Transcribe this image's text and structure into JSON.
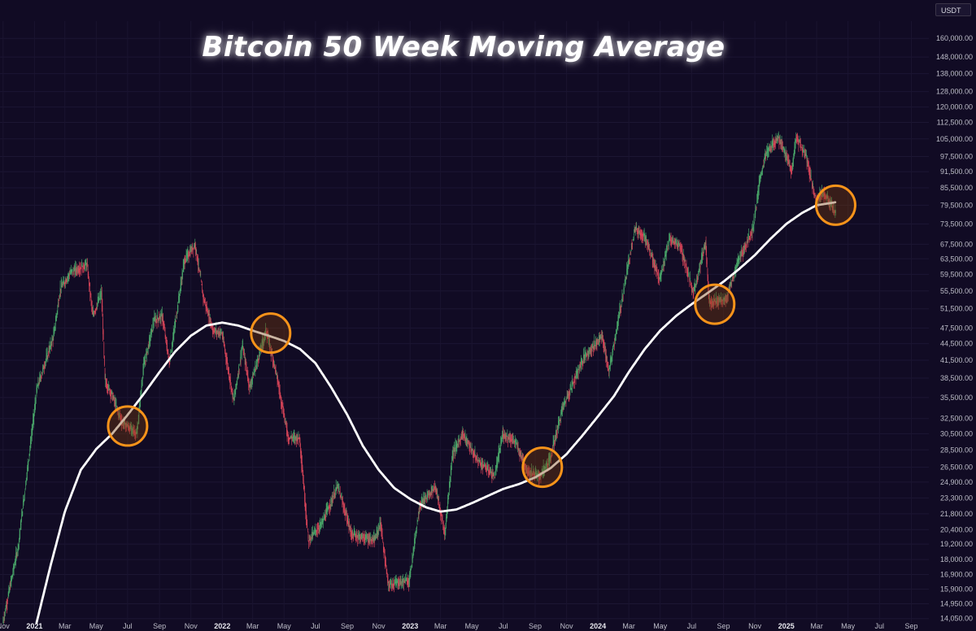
{
  "chart_data": {
    "type": "candlestick",
    "title": "Bitcoin 50 Week Moving Average",
    "currency": "USDT",
    "y_scale": "log",
    "ylim": [
      13800,
      172000
    ],
    "xlim": [
      "2020-10-26",
      "2025-10-05"
    ],
    "colors": {
      "background": "#110b24",
      "up_candle": "#4cae6d",
      "down_candle": "#e0475b",
      "ma_line": "#ffffff",
      "highlight_circle": "#f7931a"
    },
    "y_ticks": [
      "14,050.00",
      "14,950.00",
      "15,900.00",
      "16,900.00",
      "18,000.00",
      "19,200.00",
      "20,400.00",
      "21,800.00",
      "23,300.00",
      "24,900.00",
      "26,500.00",
      "28,500.00",
      "30,500.00",
      "32,500.00",
      "35,500.00",
      "38,500.00",
      "41,500.00",
      "44,500.00",
      "47,500.00",
      "51,500.00",
      "55,500.00",
      "59,500.00",
      "63,500.00",
      "67,500.00",
      "73,500.00",
      "79,500.00",
      "85,500.00",
      "91,500.00",
      "97,500.00",
      "105,000.00",
      "112,500.00",
      "120,000.00",
      "128,000.00",
      "138,000.00",
      "148,000.00",
      "160,000.00"
    ],
    "y_tick_values": [
      14050,
      14950,
      15900,
      16900,
      18000,
      19200,
      20400,
      21800,
      23300,
      24900,
      26500,
      28500,
      30500,
      32500,
      35500,
      38500,
      41500,
      44500,
      47500,
      51500,
      55500,
      59500,
      63500,
      67500,
      73500,
      79500,
      85500,
      91500,
      97500,
      105000,
      112500,
      120000,
      128000,
      138000,
      148000,
      160000
    ],
    "x_ticks": [
      {
        "label": "Nov",
        "date": "2020-11-01"
      },
      {
        "label": "2021",
        "date": "2021-01-01",
        "year": true
      },
      {
        "label": "Mar",
        "date": "2021-03-01"
      },
      {
        "label": "May",
        "date": "2021-05-01"
      },
      {
        "label": "Jul",
        "date": "2021-07-01"
      },
      {
        "label": "Sep",
        "date": "2021-09-01"
      },
      {
        "label": "Nov",
        "date": "2021-11-01"
      },
      {
        "label": "2022",
        "date": "2022-01-01",
        "year": true
      },
      {
        "label": "Mar",
        "date": "2022-03-01"
      },
      {
        "label": "May",
        "date": "2022-05-01"
      },
      {
        "label": "Jul",
        "date": "2022-07-01"
      },
      {
        "label": "Sep",
        "date": "2022-09-01"
      },
      {
        "label": "Nov",
        "date": "2022-11-01"
      },
      {
        "label": "2023",
        "date": "2023-01-01",
        "year": true
      },
      {
        "label": "Mar",
        "date": "2023-03-01"
      },
      {
        "label": "May",
        "date": "2023-05-01"
      },
      {
        "label": "Jul",
        "date": "2023-07-01"
      },
      {
        "label": "Sep",
        "date": "2023-09-01"
      },
      {
        "label": "Nov",
        "date": "2023-11-01"
      },
      {
        "label": "2024",
        "date": "2024-01-01",
        "year": true
      },
      {
        "label": "Mar",
        "date": "2024-03-01"
      },
      {
        "label": "May",
        "date": "2024-05-01"
      },
      {
        "label": "Jul",
        "date": "2024-07-01"
      },
      {
        "label": "Sep",
        "date": "2024-09-01"
      },
      {
        "label": "Nov",
        "date": "2024-11-01"
      },
      {
        "label": "2025",
        "date": "2025-01-01",
        "year": true
      },
      {
        "label": "Mar",
        "date": "2025-03-01"
      },
      {
        "label": "May",
        "date": "2025-05-01"
      },
      {
        "label": "Jul",
        "date": "2025-07-01"
      },
      {
        "label": "Sep",
        "date": "2025-09-01"
      }
    ],
    "price_keypoints": [
      [
        "2020-11-01",
        13800
      ],
      [
        "2020-12-01",
        19000
      ],
      [
        "2021-01-07",
        37000
      ],
      [
        "2021-02-08",
        46000
      ],
      [
        "2021-02-21",
        56000
      ],
      [
        "2021-03-13",
        60000
      ],
      [
        "2021-04-14",
        62000
      ],
      [
        "2021-04-25",
        50000
      ],
      [
        "2021-05-12",
        55000
      ],
      [
        "2021-05-19",
        38000
      ],
      [
        "2021-06-01",
        36000
      ],
      [
        "2021-06-21",
        32000
      ],
      [
        "2021-07-20",
        30500
      ],
      [
        "2021-08-01",
        40000
      ],
      [
        "2021-08-22",
        49000
      ],
      [
        "2021-09-07",
        50000
      ],
      [
        "2021-09-21",
        41000
      ],
      [
        "2021-10-20",
        63000
      ],
      [
        "2021-11-10",
        67500
      ],
      [
        "2021-11-26",
        54000
      ],
      [
        "2021-12-15",
        47000
      ],
      [
        "2022-01-01",
        46500
      ],
      [
        "2022-01-24",
        35000
      ],
      [
        "2022-02-10",
        44000
      ],
      [
        "2022-02-24",
        37000
      ],
      [
        "2022-03-28",
        47000
      ],
      [
        "2022-04-15",
        40000
      ],
      [
        "2022-05-10",
        30000
      ],
      [
        "2022-06-01",
        30000
      ],
      [
        "2022-06-18",
        19500
      ],
      [
        "2022-07-15",
        21000
      ],
      [
        "2022-08-14",
        24500
      ],
      [
        "2022-09-10",
        20000
      ],
      [
        "2022-10-25",
        19500
      ],
      [
        "2022-11-05",
        21000
      ],
      [
        "2022-11-20",
        16200
      ],
      [
        "2022-12-31",
        16500
      ],
      [
        "2023-01-20",
        22500
      ],
      [
        "2023-02-20",
        24500
      ],
      [
        "2023-03-10",
        20000
      ],
      [
        "2023-03-25",
        28000
      ],
      [
        "2023-04-14",
        30500
      ],
      [
        "2023-05-10",
        27500
      ],
      [
        "2023-06-15",
        25500
      ],
      [
        "2023-07-01",
        30500
      ],
      [
        "2023-07-25",
        29500
      ],
      [
        "2023-08-18",
        26000
      ],
      [
        "2023-09-11",
        25500
      ],
      [
        "2023-10-01",
        27500
      ],
      [
        "2023-10-25",
        34000
      ],
      [
        "2023-12-05",
        42000
      ],
      [
        "2024-01-10",
        46000
      ],
      [
        "2024-01-23",
        39500
      ],
      [
        "2024-02-15",
        52000
      ],
      [
        "2024-03-13",
        72000
      ],
      [
        "2024-04-01",
        70000
      ],
      [
        "2024-05-01",
        58000
      ],
      [
        "2024-05-20",
        69000
      ],
      [
        "2024-06-10",
        67000
      ],
      [
        "2024-07-05",
        55000
      ],
      [
        "2024-07-29",
        68000
      ],
      [
        "2024-08-05",
        53000
      ],
      [
        "2024-09-06",
        53500
      ],
      [
        "2024-10-01",
        63000
      ],
      [
        "2024-10-29",
        72000
      ],
      [
        "2024-11-12",
        89000
      ],
      [
        "2024-11-22",
        98000
      ],
      [
        "2024-12-17",
        106000
      ],
      [
        "2025-01-13",
        92000
      ],
      [
        "2025-01-21",
        106000
      ],
      [
        "2025-02-10",
        97000
      ],
      [
        "2025-02-28",
        81000
      ],
      [
        "2025-03-15",
        84000
      ],
      [
        "2025-04-07",
        77000
      ]
    ],
    "ma_keypoints": [
      [
        "2021-01-05",
        13800
      ],
      [
        "2021-02-01",
        17500
      ],
      [
        "2021-03-01",
        22000
      ],
      [
        "2021-04-01",
        26200
      ],
      [
        "2021-05-01",
        28600
      ],
      [
        "2021-06-01",
        30500
      ],
      [
        "2021-07-01",
        33000
      ],
      [
        "2021-08-01",
        36000
      ],
      [
        "2021-09-01",
        39500
      ],
      [
        "2021-10-01",
        43000
      ],
      [
        "2021-11-01",
        46000
      ],
      [
        "2021-12-01",
        48000
      ],
      [
        "2022-01-01",
        48600
      ],
      [
        "2022-02-01",
        48000
      ],
      [
        "2022-03-01",
        47000
      ],
      [
        "2022-04-01",
        46000
      ],
      [
        "2022-05-01",
        45000
      ],
      [
        "2022-06-01",
        43500
      ],
      [
        "2022-07-01",
        41000
      ],
      [
        "2022-08-01",
        37000
      ],
      [
        "2022-09-01",
        33000
      ],
      [
        "2022-10-01",
        29000
      ],
      [
        "2022-11-01",
        26200
      ],
      [
        "2022-12-01",
        24300
      ],
      [
        "2023-01-01",
        23200
      ],
      [
        "2023-02-01",
        22400
      ],
      [
        "2023-03-01",
        22000
      ],
      [
        "2023-04-01",
        22200
      ],
      [
        "2023-05-01",
        22800
      ],
      [
        "2023-06-01",
        23500
      ],
      [
        "2023-07-01",
        24200
      ],
      [
        "2023-08-01",
        24700
      ],
      [
        "2023-09-01",
        25400
      ],
      [
        "2023-10-01",
        26400
      ],
      [
        "2023-11-01",
        28000
      ],
      [
        "2023-12-01",
        30200
      ],
      [
        "2024-01-01",
        32800
      ],
      [
        "2024-02-01",
        35700
      ],
      [
        "2024-03-01",
        39500
      ],
      [
        "2024-04-01",
        43500
      ],
      [
        "2024-05-01",
        47000
      ],
      [
        "2024-06-01",
        50000
      ],
      [
        "2024-07-01",
        52500
      ],
      [
        "2024-08-01",
        55000
      ],
      [
        "2024-09-01",
        57700
      ],
      [
        "2024-10-01",
        60800
      ],
      [
        "2024-11-01",
        64500
      ],
      [
        "2024-12-01",
        69000
      ],
      [
        "2025-01-01",
        73500
      ],
      [
        "2025-02-01",
        77000
      ],
      [
        "2025-03-01",
        79500
      ],
      [
        "2025-04-07",
        80500
      ]
    ],
    "highlight_points": [
      [
        "2021-07-01",
        31500
      ],
      [
        "2022-04-05",
        46500
      ],
      [
        "2023-09-15",
        26500
      ],
      [
        "2024-08-15",
        52500
      ],
      [
        "2025-04-07",
        79500
      ]
    ]
  }
}
